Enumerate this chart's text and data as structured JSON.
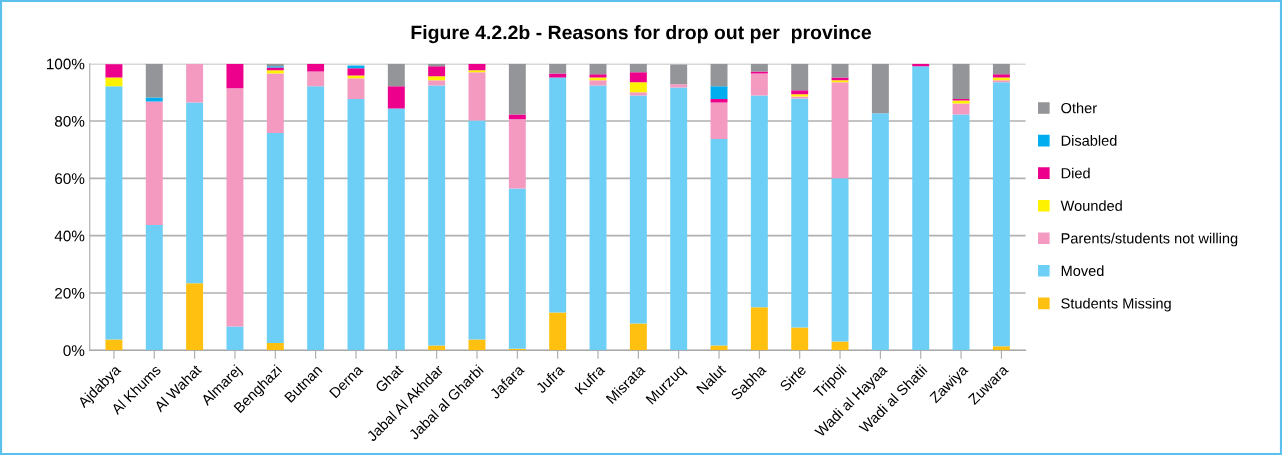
{
  "chart_data": {
    "type": "bar",
    "stacked": true,
    "title": "Figure 4.2.2b - Reasons for drop out per  province",
    "categories": [
      "Ajdabya",
      "Al Khums",
      "Al Wahat",
      "Almarej",
      "Benghazi",
      "Butnan",
      "Derna",
      "Ghat",
      "Jabal Al Akhdar",
      "Jabal al Gharbi",
      "Jafara",
      "Jufra",
      "Kufra",
      "Misrata",
      "Murzuq",
      "Nalut",
      "Sabha",
      "Sirte",
      "Tripoli",
      "Wadi al Hayaa",
      "Wadi al Shatii",
      "Zawiya",
      "Zuwara"
    ],
    "series": [
      {
        "name": "Students Missing",
        "color": "#ffc010",
        "values": [
          3.8,
          0,
          23.4,
          0,
          2.6,
          0,
          0,
          0,
          1.7,
          3.8,
          0.6,
          13.2,
          0,
          9.4,
          0,
          1.7,
          15.0,
          8.0,
          3.1,
          0,
          0,
          0,
          1.4
        ]
      },
      {
        "name": "Moved",
        "color": "#6dcff6",
        "values": [
          88.3,
          43.7,
          63.1,
          8.3,
          73.2,
          92.1,
          87.7,
          84.4,
          90.7,
          76.4,
          55.9,
          82.0,
          92.4,
          79.5,
          91.7,
          72.0,
          73.9,
          79.9,
          56.9,
          82.7,
          99.1,
          82.3,
          92.1
        ]
      },
      {
        "name": "Parents/students not willing",
        "color": "#f49ac1",
        "values": [
          0,
          43.1,
          13.5,
          83.1,
          20.8,
          5.2,
          7.2,
          0,
          1.8,
          16.8,
          24.1,
          0,
          1.8,
          1.1,
          1.1,
          12.8,
          7.7,
          0.7,
          33.5,
          0,
          0,
          3.8,
          0.7
        ]
      },
      {
        "name": "Wounded",
        "color": "#fff200",
        "values": [
          3.1,
          0,
          0,
          0,
          1.1,
          0,
          1.0,
          0,
          1.4,
          0.7,
          0,
          0,
          1.0,
          3.5,
          0,
          0,
          0,
          0.7,
          0.7,
          0,
          0,
          1.1,
          1.0
        ]
      },
      {
        "name": "Died",
        "color": "#ec008c",
        "values": [
          4.6,
          0,
          0,
          8.6,
          1.0,
          2.7,
          2.5,
          7.7,
          3.5,
          2.3,
          1.7,
          1.4,
          1.1,
          3.5,
          null,
          1.2,
          0.7,
          1.4,
          1.0,
          0,
          0.9,
          0.5,
          1.1
        ]
      },
      {
        "name": "Disabled",
        "color": "#00aeef",
        "values": [
          null,
          1.4,
          0,
          0,
          0.4,
          0,
          1.0,
          0,
          0,
          0,
          0,
          0,
          0,
          0,
          0,
          4.4,
          0,
          0,
          0,
          0,
          0,
          0,
          0
        ]
      },
      {
        "name": "Other",
        "color": "#939598",
        "values": [
          0,
          11.8,
          0,
          0,
          0.9,
          0,
          null,
          7.9,
          0.9,
          0,
          17.7,
          3.4,
          3.7,
          3.0,
          6.9,
          7.9,
          2.7,
          9.3,
          4.8,
          17.3,
          0,
          12.3,
          3.7
        ]
      }
    ],
    "ylim": [
      0,
      100
    ],
    "yticks": [
      {
        "value": 0,
        "label": "0%"
      },
      {
        "value": 20,
        "label": "20%"
      },
      {
        "value": 40,
        "label": "40%"
      },
      {
        "value": 60,
        "label": "60%"
      },
      {
        "value": 80,
        "label": "80%"
      },
      {
        "value": 100,
        "label": "100%"
      }
    ],
    "grid": "y",
    "legend": "right"
  }
}
